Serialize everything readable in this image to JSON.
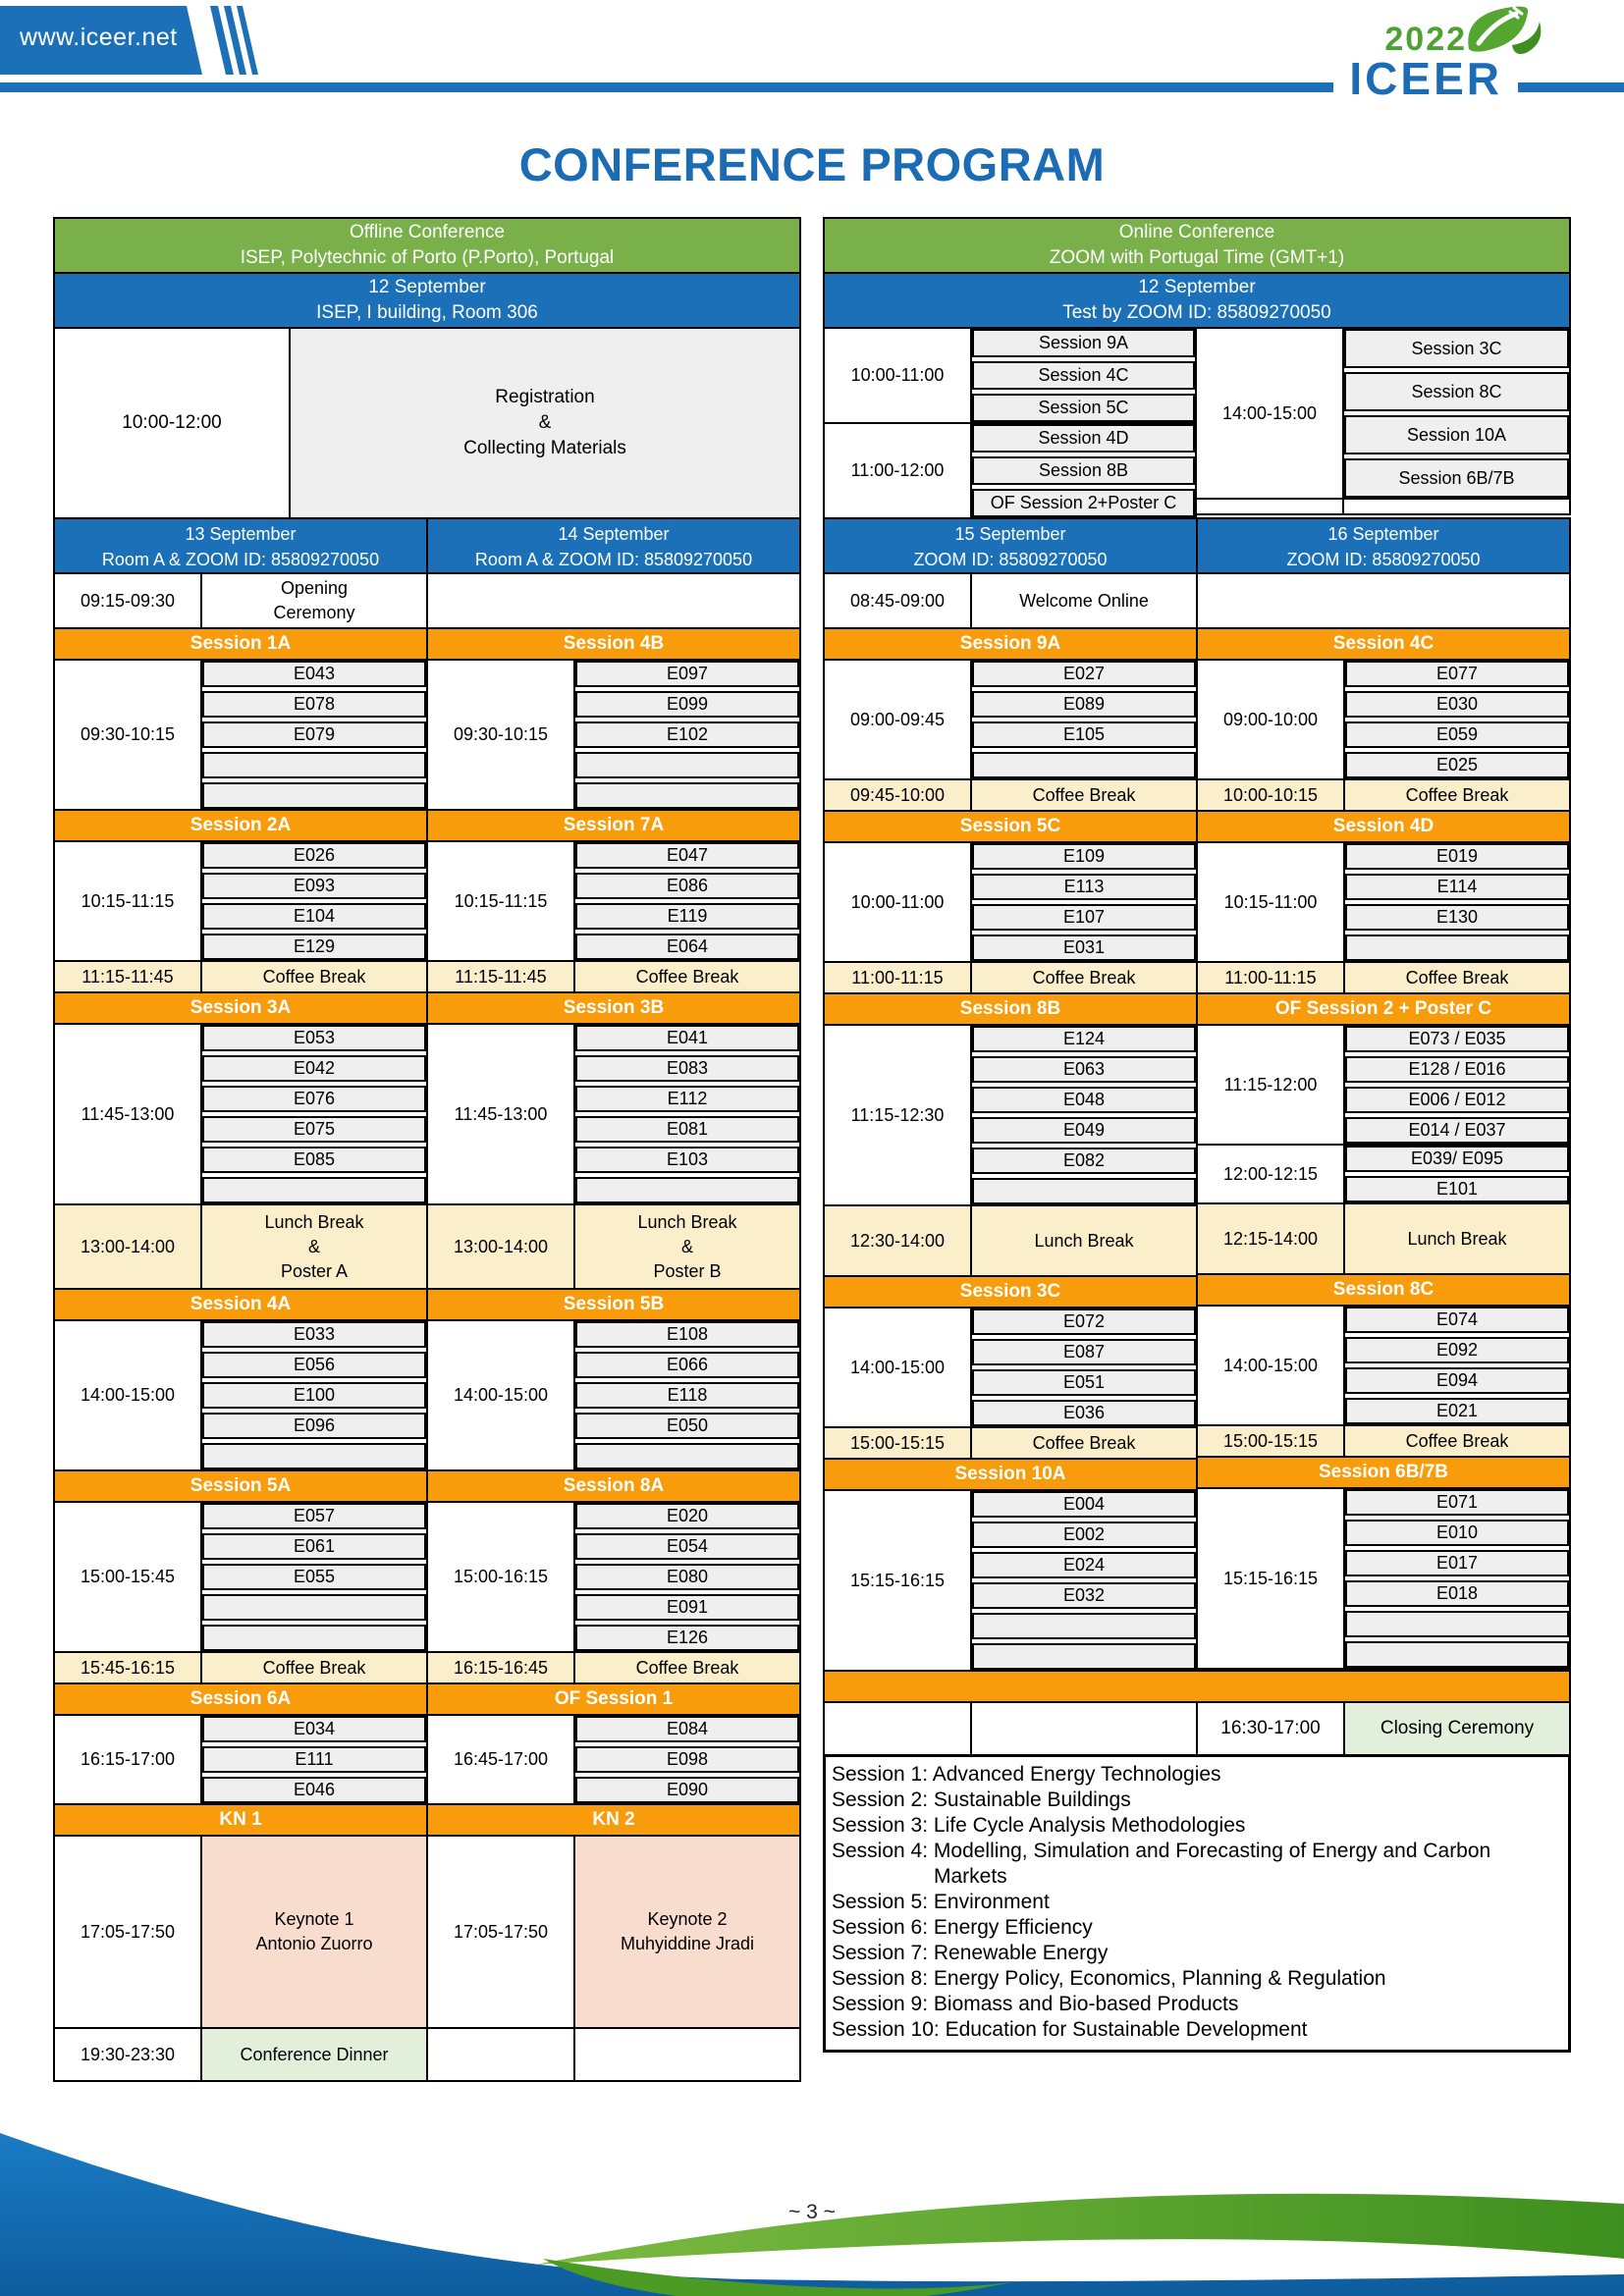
{
  "colors": {
    "ribbon_blue": "#1c70b8",
    "title_blue": "#1b6bb5",
    "header_green": "#79b04a",
    "header_blue": "#1c70b8",
    "session_orange": "#f89c0c",
    "break_cream": "#fbeeca",
    "paper_gray": "#efefef",
    "keynote_pink": "#f8dcce",
    "event_green": "#e2efda",
    "logo_green": "#4da32f",
    "wave_blue": "#1271b7",
    "wave_green": "#5ba62d"
  },
  "header": {
    "site": "www.iceer.net",
    "logo_year": "2022",
    "logo_name": "ICEER",
    "title": "CONFERENCE PROGRAM"
  },
  "top": {
    "offline": {
      "venue_header": [
        "Offline Conference",
        "ISEP, Polytechnic of Porto (P.Porto), Portugal"
      ],
      "date_header": [
        "12 September",
        "ISEP, I building, Room 306"
      ],
      "registration": {
        "time": "10:00-12:00",
        "lines": [
          "Registration",
          "&",
          "Collecting Materials"
        ]
      }
    },
    "online": {
      "venue_header": [
        "Online Conference",
        "ZOOM with Portugal Time (GMT+1)"
      ],
      "date_header": [
        "12 September",
        "Test by ZOOM ID: 85809270050"
      ],
      "left_groups": [
        {
          "time": "10:00-11:00",
          "sessions": [
            "Session 9A",
            "Session 4C",
            "Session 5C"
          ]
        },
        {
          "time": "11:00-12:00",
          "sessions": [
            "Session 4D",
            "Session 8B",
            "OF Session 2+Poster C"
          ]
        }
      ],
      "right_groups": [
        {
          "time": "14:00-15:00",
          "sessions": [
            "Session 3C",
            "Session 8C",
            "Session 10A",
            "Session 6B/7B"
          ]
        }
      ]
    }
  },
  "days": {
    "d13": {
      "header": [
        "13 September",
        "Room A & ZOOM ID: 85809270050"
      ],
      "blocks": [
        {
          "t": "event",
          "time": "09:15-09:30",
          "lines": [
            "Opening",
            "Ceremony"
          ],
          "bg": "white",
          "h": 58
        },
        {
          "t": "session",
          "label": "Session 1A"
        },
        {
          "t": "papers",
          "time": "09:30-10:15",
          "rows": [
            "E043",
            "E078",
            "E079",
            "",
            ""
          ]
        },
        {
          "t": "session",
          "label": "Session 2A"
        },
        {
          "t": "papers",
          "time": "10:15-11:15",
          "rows": [
            "E026",
            "E093",
            "E104",
            "E129"
          ]
        },
        {
          "t": "break",
          "time": "11:15-11:45",
          "lines": [
            "Coffee Break"
          ],
          "h": 34
        },
        {
          "t": "session",
          "label": "Session 3A"
        },
        {
          "t": "papers",
          "time": "11:45-13:00",
          "rows": [
            "E053",
            "E042",
            "E076",
            "E075",
            "E085",
            ""
          ]
        },
        {
          "t": "break",
          "time": "13:00-14:00",
          "lines": [
            "Lunch Break",
            "&",
            "Poster A"
          ],
          "h": 88
        },
        {
          "t": "session",
          "label": "Session 4A"
        },
        {
          "t": "papers",
          "time": "14:00-15:00",
          "rows": [
            "E033",
            "E056",
            "E100",
            "E096",
            ""
          ]
        },
        {
          "t": "session",
          "label": "Session 5A"
        },
        {
          "t": "papers",
          "time": "15:00-15:45",
          "rows": [
            "E057",
            "E061",
            "E055",
            "",
            ""
          ]
        },
        {
          "t": "break",
          "time": "15:45-16:15",
          "lines": [
            "Coffee Break"
          ],
          "h": 34
        },
        {
          "t": "session",
          "label": "Session 6A"
        },
        {
          "t": "papers",
          "time": "16:15-17:00",
          "rows": [
            "E034",
            "E111",
            "E046"
          ]
        },
        {
          "t": "session",
          "label": "KN 1"
        },
        {
          "t": "keynote",
          "time": "17:05-17:50",
          "lines": [
            "Keynote 1",
            "Antonio Zuorro"
          ],
          "h": 198
        },
        {
          "t": "event",
          "time": "19:30-23:30",
          "lines": [
            "Conference Dinner"
          ],
          "bg": "green",
          "h": 56
        }
      ]
    },
    "d14": {
      "header": [
        "14 September",
        "Room A & ZOOM ID: 85809270050"
      ],
      "blocks": [
        {
          "t": "blank",
          "h": 58
        },
        {
          "t": "session",
          "label": "Session 4B"
        },
        {
          "t": "papers",
          "time": "09:30-10:15",
          "rows": [
            "E097",
            "E099",
            "E102",
            "",
            ""
          ]
        },
        {
          "t": "session",
          "label": "Session 7A"
        },
        {
          "t": "papers",
          "time": "10:15-11:15",
          "rows": [
            "E047",
            "E086",
            "E119",
            "E064"
          ]
        },
        {
          "t": "break",
          "time": "11:15-11:45",
          "lines": [
            "Coffee Break"
          ],
          "h": 34
        },
        {
          "t": "session",
          "label": "Session 3B"
        },
        {
          "t": "papers",
          "time": "11:45-13:00",
          "rows": [
            "E041",
            "E083",
            "E112",
            "E081",
            "E103",
            ""
          ]
        },
        {
          "t": "break",
          "time": "13:00-14:00",
          "lines": [
            "Lunch Break",
            "&",
            "Poster B"
          ],
          "h": 88
        },
        {
          "t": "session",
          "label": "Session 5B"
        },
        {
          "t": "papers",
          "time": "14:00-15:00",
          "rows": [
            "E108",
            "E066",
            "E118",
            "E050",
            ""
          ]
        },
        {
          "t": "session",
          "label": "Session 8A"
        },
        {
          "t": "papers",
          "time": "15:00-16:15",
          "rows": [
            "E020",
            "E054",
            "E080",
            "E091",
            "E126"
          ]
        },
        {
          "t": "break",
          "time": "16:15-16:45",
          "lines": [
            "Coffee Break"
          ],
          "h": 34
        },
        {
          "t": "session",
          "label": "OF Session 1"
        },
        {
          "t": "papers",
          "time": "16:45-17:00",
          "rows": [
            "E084",
            "E098",
            "E090"
          ]
        },
        {
          "t": "session",
          "label": "KN 2"
        },
        {
          "t": "keynote",
          "time": "17:05-17:50",
          "lines": [
            "Keynote 2",
            "Muhyiddine Jradi"
          ],
          "h": 198
        },
        {
          "t": "blank",
          "h": 56,
          "split": true
        }
      ]
    },
    "d15": {
      "header": [
        "15 September",
        "ZOOM ID: 85809270050"
      ],
      "blocks": [
        {
          "t": "event",
          "time": "08:45-09:00",
          "lines": [
            "Welcome Online"
          ],
          "bg": "white",
          "h": 58
        },
        {
          "t": "session",
          "label": "Session 9A"
        },
        {
          "t": "papers",
          "time": "09:00-09:45",
          "rows": [
            "E027",
            "E089",
            "E105",
            ""
          ]
        },
        {
          "t": "break",
          "time": "09:45-10:00",
          "lines": [
            "Coffee Break"
          ],
          "h": 34
        },
        {
          "t": "session",
          "label": "Session 5C"
        },
        {
          "t": "papers",
          "time": "10:00-11:00",
          "rows": [
            "E109",
            "E113",
            "E107",
            "E031"
          ]
        },
        {
          "t": "break",
          "time": "11:00-11:15",
          "lines": [
            "Coffee Break"
          ],
          "h": 34
        },
        {
          "t": "session",
          "label": "Session 8B"
        },
        {
          "t": "papers",
          "time": "11:15-12:30",
          "rows": [
            "E124",
            "E063",
            "E048",
            "E049",
            "E082",
            ""
          ]
        },
        {
          "t": "break",
          "time": "12:30-14:00",
          "lines": [
            "Lunch Break"
          ],
          "h": 74
        },
        {
          "t": "session",
          "label": "Session 3C"
        },
        {
          "t": "papers",
          "time": "14:00-15:00",
          "rows": [
            "E072",
            "E087",
            "E051",
            "E036"
          ]
        },
        {
          "t": "break",
          "time": "15:00-15:15",
          "lines": [
            "Coffee Break"
          ],
          "h": 34
        },
        {
          "t": "session",
          "label": "Session 10A"
        },
        {
          "t": "papers",
          "time": "15:15-16:15",
          "rows": [
            "E004",
            "E002",
            "E024",
            "E032",
            "",
            ""
          ]
        }
      ]
    },
    "d16": {
      "header": [
        "16 September",
        "ZOOM ID: 85809270050"
      ],
      "blocks": [
        {
          "t": "blank",
          "h": 58
        },
        {
          "t": "session",
          "label": "Session 4C"
        },
        {
          "t": "papers",
          "time": "09:00-10:00",
          "rows": [
            "E077",
            "E030",
            "E059",
            "E025"
          ]
        },
        {
          "t": "break",
          "time": "10:00-10:15",
          "lines": [
            "Coffee Break"
          ],
          "h": 34
        },
        {
          "t": "session",
          "label": "Session 4D"
        },
        {
          "t": "papers",
          "time": "10:15-11:00",
          "rows": [
            "E019",
            "E114",
            "E130",
            ""
          ]
        },
        {
          "t": "break",
          "time": "11:00-11:15",
          "lines": [
            "Coffee Break"
          ],
          "h": 34
        },
        {
          "t": "session",
          "label": "OF Session 2 + Poster C"
        },
        {
          "t": "papers",
          "time": "11:15-12:00",
          "rows": [
            "E073 / E035",
            "E128 / E016",
            "E006 / E012",
            "E014 / E037"
          ]
        },
        {
          "t": "papers",
          "time": "12:00-12:15",
          "rows": [
            "E039/ E095",
            "E101"
          ]
        },
        {
          "t": "break",
          "time": "12:15-14:00",
          "lines": [
            "Lunch Break"
          ],
          "h": 74
        },
        {
          "t": "session",
          "label": "Session 8C"
        },
        {
          "t": "papers",
          "time": "14:00-15:00",
          "rows": [
            "E074",
            "E092",
            "E094",
            "E021"
          ]
        },
        {
          "t": "break",
          "time": "15:00-15:15",
          "lines": [
            "Coffee Break"
          ],
          "h": 34
        },
        {
          "t": "session",
          "label": "Session 6B/7B"
        },
        {
          "t": "papers",
          "time": "15:15-16:15",
          "rows": [
            "E071",
            "E010",
            "E017",
            "E018",
            "",
            ""
          ]
        }
      ]
    }
  },
  "shared": {
    "closing_time": "16:30-17:00",
    "closing_label": "Closing Ceremony"
  },
  "legend": {
    "lines": [
      {
        "text": "Session 1: Advanced Energy Technologies"
      },
      {
        "text": "Session 2: Sustainable Buildings"
      },
      {
        "text": "Session 3: Life Cycle Analysis Methodologies"
      },
      {
        "text": "Session 4: Modelling, Simulation and Forecasting of Energy and Carbon",
        "nowrap": true
      },
      {
        "text": "Markets",
        "indent": true
      },
      {
        "text": "Session 5: Environment"
      },
      {
        "text": "Session 6: Energy Efficiency"
      },
      {
        "text": "Session 7: Renewable Energy"
      },
      {
        "text": "Session 8: Energy Policy, Economics, Planning & Regulation"
      },
      {
        "text": "Session 9: Biomass and Bio-based Products"
      },
      {
        "text": "Session 10: Education for Sustainable Development"
      }
    ]
  },
  "footer": {
    "page": "~ 3 ~"
  }
}
